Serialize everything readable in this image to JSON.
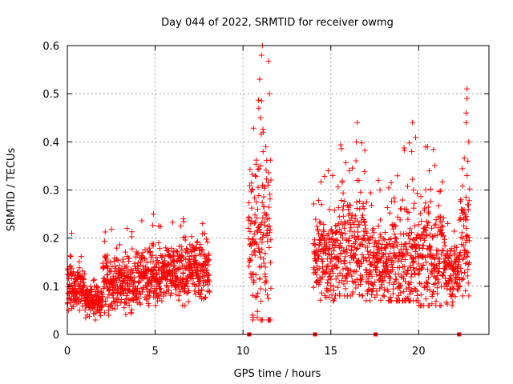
{
  "chart_data": {
    "type": "scatter",
    "title": "Day 044 of 2022, SRMTID for receiver owmg",
    "xlabel": "GPS time / hours",
    "ylabel": "SRMTID / TECUs",
    "xlim": [
      0,
      24
    ],
    "ylim": [
      0,
      0.6
    ],
    "x_ticks": [
      0,
      5,
      10,
      15,
      20
    ],
    "y_ticks": [
      0,
      0.1,
      0.2,
      0.3,
      0.4,
      0.5,
      0.6
    ],
    "x_tick_labels": [
      "0",
      "5",
      "10",
      "15",
      "20"
    ],
    "y_tick_labels": [
      "0",
      "0.1",
      "0.2",
      "0.3",
      "0.4",
      "0.5",
      "0.6"
    ],
    "grid": true,
    "marker": "+",
    "series_color": "#ff0000",
    "data_gap_markers_x": [
      10.35,
      14.1,
      17.55,
      22.3
    ],
    "series": [
      {
        "name": "SRMTID",
        "segments": [
          {
            "x_start": 0.0,
            "x_end": 1.0,
            "min": 0.05,
            "max": 0.21,
            "typical": 0.1
          },
          {
            "x_start": 1.0,
            "x_end": 2.0,
            "min": 0.03,
            "max": 0.12,
            "typical": 0.07
          },
          {
            "x_start": 2.0,
            "x_end": 4.0,
            "min": 0.04,
            "max": 0.22,
            "typical": 0.11
          },
          {
            "x_start": 4.0,
            "x_end": 5.5,
            "min": 0.06,
            "max": 0.25,
            "typical": 0.12
          },
          {
            "x_start": 5.5,
            "x_end": 8.1,
            "min": 0.05,
            "max": 0.24,
            "typical": 0.13
          },
          {
            "x_start": 10.3,
            "x_end": 11.6,
            "min": 0.03,
            "max": 0.6,
            "typical": 0.2
          },
          {
            "x_start": 14.0,
            "x_end": 15.5,
            "min": 0.07,
            "max": 0.34,
            "typical": 0.16
          },
          {
            "x_start": 15.5,
            "x_end": 17.0,
            "min": 0.08,
            "max": 0.44,
            "typical": 0.18
          },
          {
            "x_start": 17.0,
            "x_end": 18.5,
            "min": 0.07,
            "max": 0.32,
            "typical": 0.15
          },
          {
            "x_start": 18.5,
            "x_end": 20.0,
            "min": 0.07,
            "max": 0.44,
            "typical": 0.14
          },
          {
            "x_start": 20.0,
            "x_end": 21.5,
            "min": 0.06,
            "max": 0.39,
            "typical": 0.16
          },
          {
            "x_start": 21.5,
            "x_end": 22.3,
            "min": 0.06,
            "max": 0.25,
            "typical": 0.13
          },
          {
            "x_start": 22.3,
            "x_end": 22.9,
            "min": 0.08,
            "max": 0.51,
            "typical": 0.2
          }
        ],
        "highlight_points": [
          {
            "x": 0.25,
            "y": 0.21
          },
          {
            "x": 3.4,
            "y": 0.22
          },
          {
            "x": 4.9,
            "y": 0.25
          },
          {
            "x": 6.6,
            "y": 0.24
          },
          {
            "x": 7.7,
            "y": 0.23
          },
          {
            "x": 11.1,
            "y": 0.6
          },
          {
            "x": 11.05,
            "y": 0.58
          },
          {
            "x": 10.95,
            "y": 0.53
          },
          {
            "x": 11.5,
            "y": 0.5
          },
          {
            "x": 10.9,
            "y": 0.47
          },
          {
            "x": 11.0,
            "y": 0.45
          },
          {
            "x": 10.5,
            "y": 0.3
          },
          {
            "x": 11.15,
            "y": 0.42
          },
          {
            "x": 11.3,
            "y": 0.39
          },
          {
            "x": 14.85,
            "y": 0.34
          },
          {
            "x": 15.1,
            "y": 0.33
          },
          {
            "x": 16.5,
            "y": 0.44
          },
          {
            "x": 16.45,
            "y": 0.4
          },
          {
            "x": 16.05,
            "y": 0.34
          },
          {
            "x": 16.5,
            "y": 0.32
          },
          {
            "x": 17.7,
            "y": 0.32
          },
          {
            "x": 17.8,
            "y": 0.3
          },
          {
            "x": 19.65,
            "y": 0.44
          },
          {
            "x": 19.6,
            "y": 0.38
          },
          {
            "x": 19.7,
            "y": 0.3
          },
          {
            "x": 20.5,
            "y": 0.39
          },
          {
            "x": 20.6,
            "y": 0.34
          },
          {
            "x": 20.4,
            "y": 0.3
          },
          {
            "x": 22.75,
            "y": 0.51
          },
          {
            "x": 22.75,
            "y": 0.49
          },
          {
            "x": 22.7,
            "y": 0.46
          },
          {
            "x": 22.7,
            "y": 0.44
          },
          {
            "x": 22.85,
            "y": 0.4
          },
          {
            "x": 22.8,
            "y": 0.36
          },
          {
            "x": 22.75,
            "y": 0.33
          },
          {
            "x": 10.55,
            "y": 0.04
          },
          {
            "x": 1.6,
            "y": 0.03
          },
          {
            "x": 20.1,
            "y": 0.06
          }
        ]
      }
    ]
  }
}
